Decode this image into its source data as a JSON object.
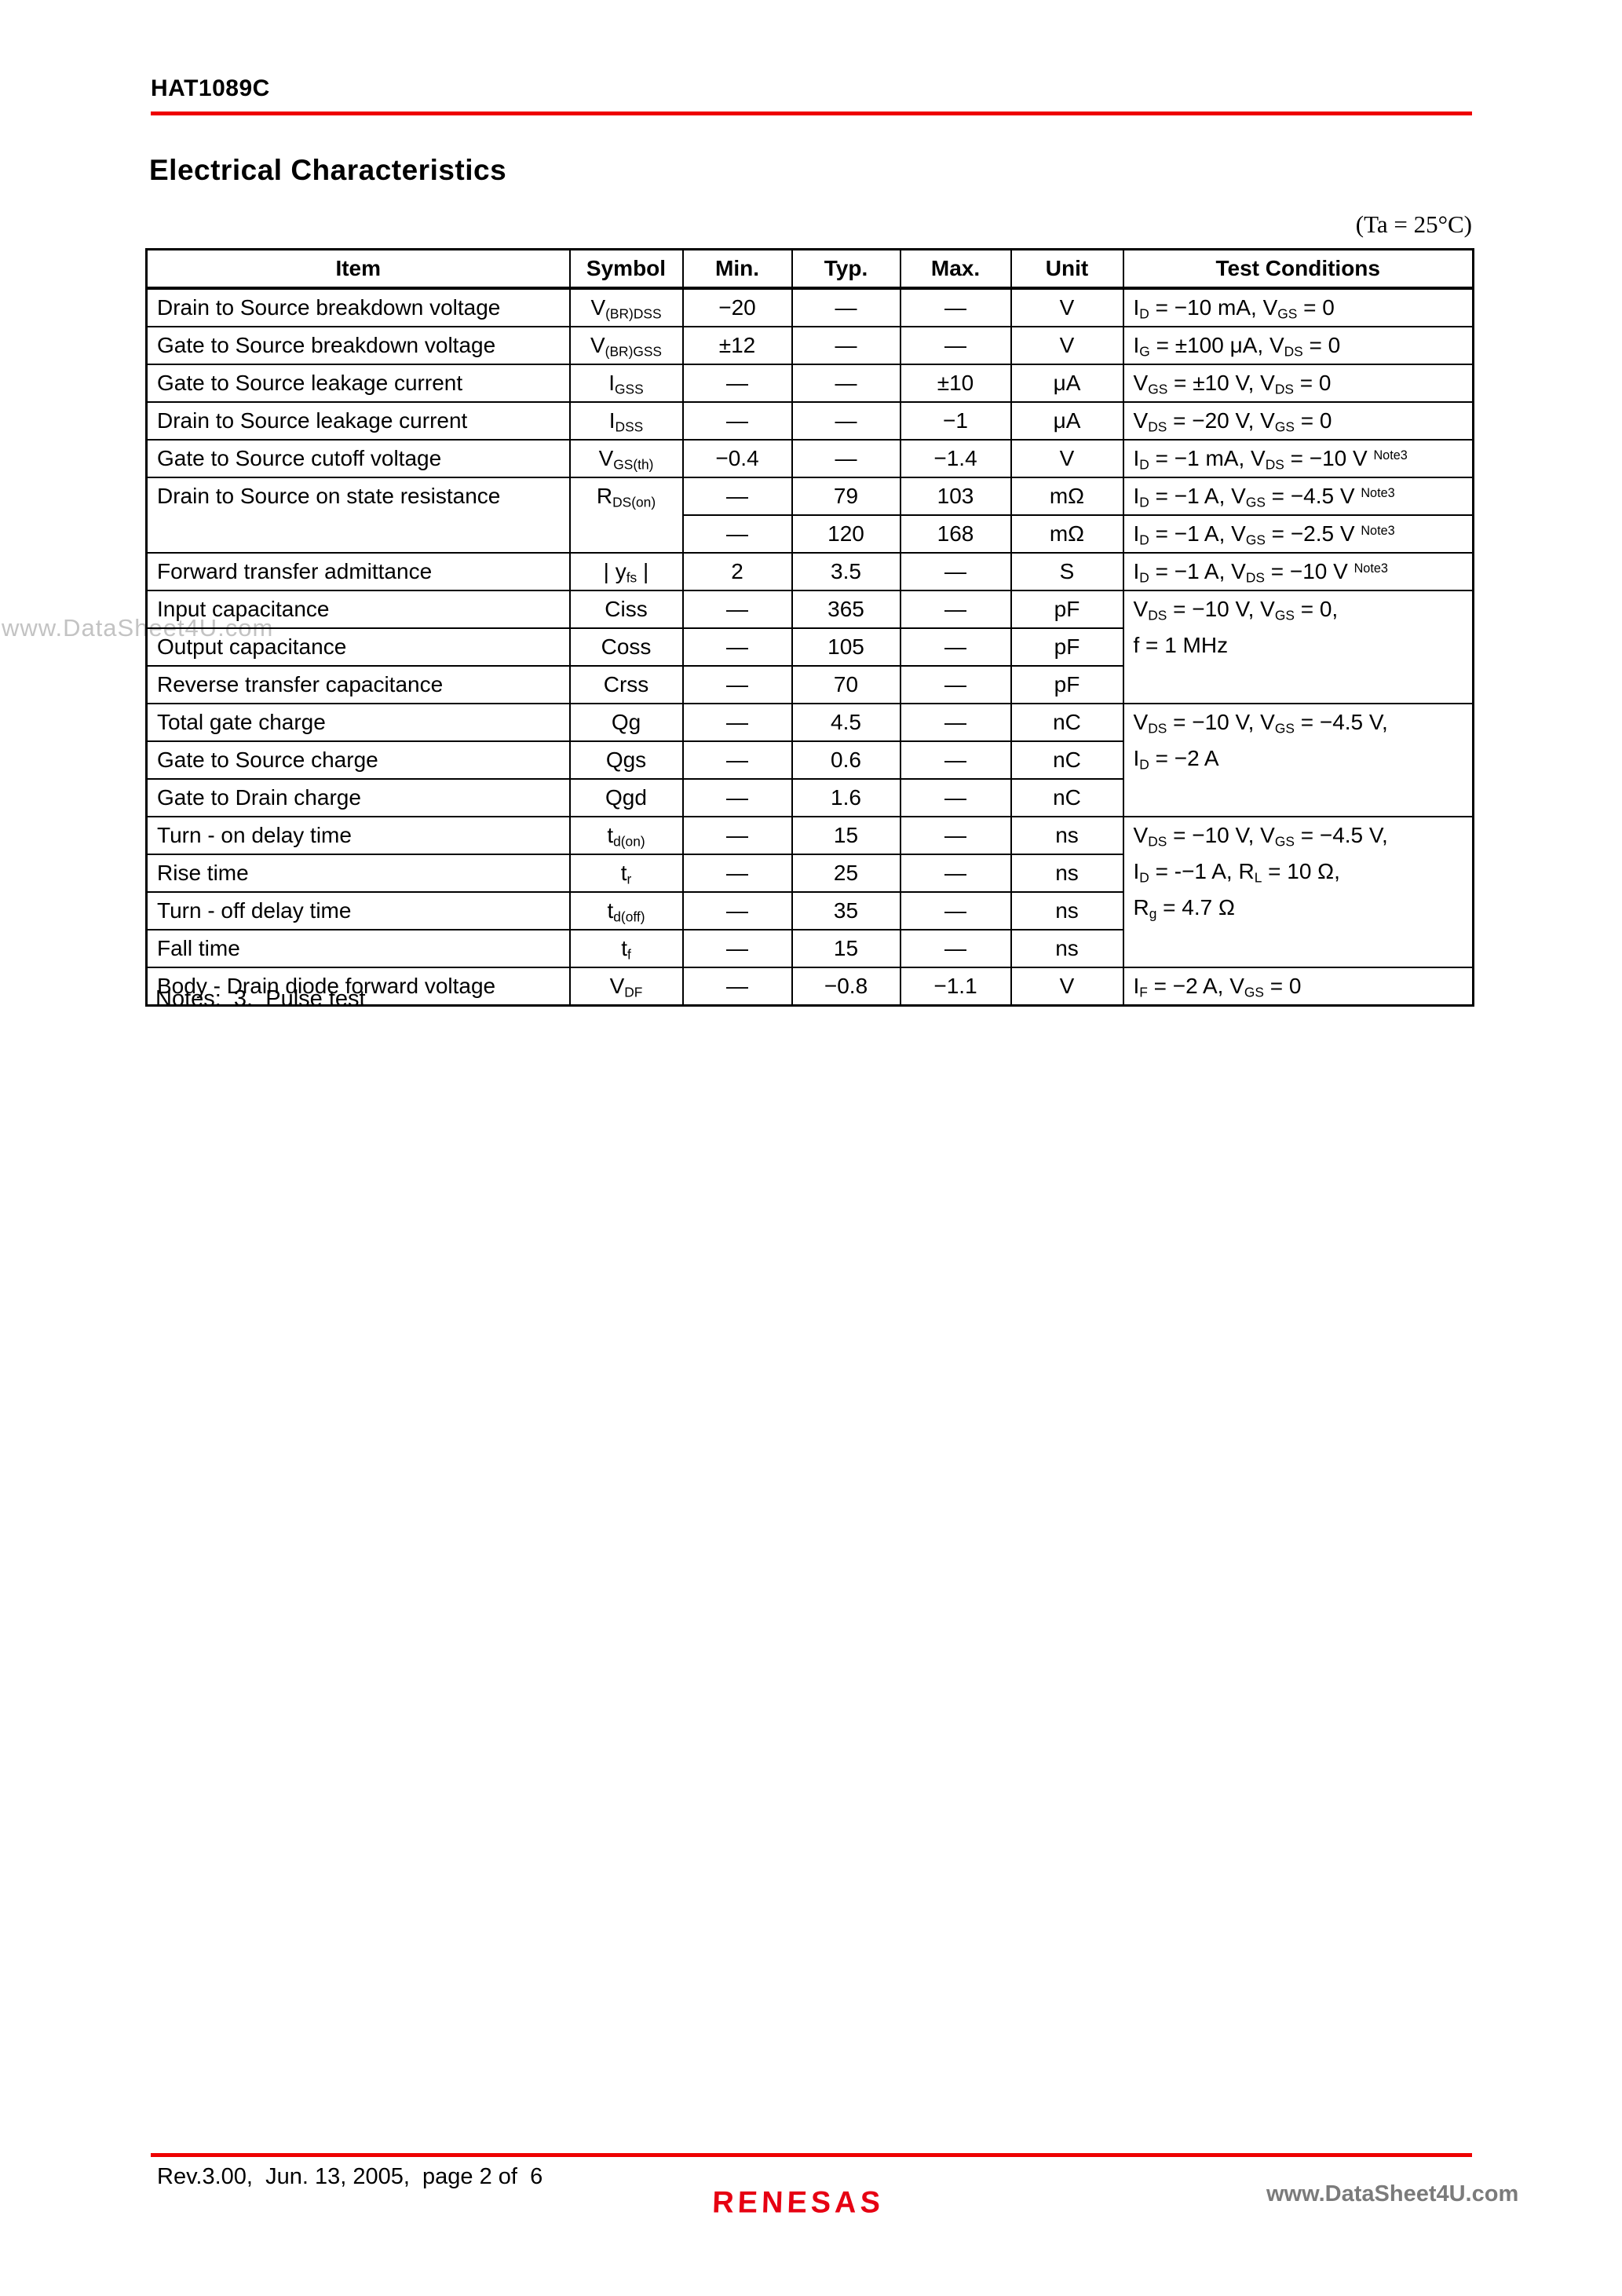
{
  "page": {
    "doc_id": "HAT1089C",
    "section_title": "Electrical Characteristics",
    "temp_note": "(Ta = 25°C)",
    "notes_line": "Notes:  3.  Pulse test",
    "watermark": "www.DataSheet4U.com",
    "colors": {
      "rule_red": "#ee0000",
      "logo_red": "#e60012",
      "watermark_gray": "#c3c3c3",
      "url_gray": "#7b7b7b"
    }
  },
  "footer": {
    "revision": "Rev.3.00,  Jun. 13, 2005,  page 2 of  6",
    "logo_text": "RENESAS",
    "url": "www.DataSheet4U.com"
  },
  "table": {
    "headers": [
      "Item",
      "Symbol",
      "Min.",
      "Typ.",
      "Max.",
      "Unit",
      "Test Conditions"
    ],
    "rows": [
      [
        {
          "t": "Drain to Source breakdown voltage",
          "c": "item"
        },
        {
          "t": "V_{(BR)DSS}"
        },
        {
          "t": "−20"
        },
        {
          "t": "—"
        },
        {
          "t": "—"
        },
        {
          "t": "V"
        },
        {
          "t": "I_{D} = −10 mA, V_{GS} = 0",
          "c": "cond"
        }
      ],
      [
        {
          "t": "Gate to Source breakdown voltage",
          "c": "item"
        },
        {
          "t": "V_{(BR)GSS}"
        },
        {
          "t": "±12"
        },
        {
          "t": "—"
        },
        {
          "t": "—"
        },
        {
          "t": "V"
        },
        {
          "t": "I_{G} = ±100 μA, V_{DS} = 0",
          "c": "cond"
        }
      ],
      [
        {
          "t": "Gate to Source leakage current",
          "c": "item"
        },
        {
          "t": "I_{GSS}"
        },
        {
          "t": "—"
        },
        {
          "t": "—"
        },
        {
          "t": "±10"
        },
        {
          "t": "μA"
        },
        {
          "t": "V_{GS} = ±10 V, V_{DS} = 0",
          "c": "cond"
        }
      ],
      [
        {
          "t": "Drain to Source leakage current",
          "c": "item"
        },
        {
          "t": "I_{DSS}"
        },
        {
          "t": "—"
        },
        {
          "t": "—"
        },
        {
          "t": "−1"
        },
        {
          "t": "μA"
        },
        {
          "t": "V_{DS} = −20 V, V_{GS} = 0",
          "c": "cond"
        }
      ],
      [
        {
          "t": "Gate to Source cutoff voltage",
          "c": "item"
        },
        {
          "t": "V_{GS(th)}"
        },
        {
          "t": "−0.4"
        },
        {
          "t": "—"
        },
        {
          "t": "−1.4"
        },
        {
          "t": "V"
        },
        {
          "t": "I_{D} = −1 mA, V_{DS} = −10 V ^{Note3}",
          "c": "cond"
        }
      ],
      [
        {
          "t": "Drain to Source on state resistance",
          "c": "item top",
          "rs": 2
        },
        {
          "t": "R_{DS(on)}",
          "c": "top",
          "rs": 2
        },
        {
          "t": "—"
        },
        {
          "t": "79"
        },
        {
          "t": "103"
        },
        {
          "t": "mΩ"
        },
        {
          "t": "I_{D} = −1 A, V_{GS} = −4.5 V ^{Note3}",
          "c": "cond"
        }
      ],
      [
        {
          "t": "—"
        },
        {
          "t": "120"
        },
        {
          "t": "168"
        },
        {
          "t": "mΩ"
        },
        {
          "t": "I_{D} = −1 A, V_{GS} = −2.5 V ^{Note3}",
          "c": "cond"
        }
      ],
      [
        {
          "t": "Forward transfer admittance",
          "c": "item"
        },
        {
          "t": "| y_{fs} |"
        },
        {
          "t": "2"
        },
        {
          "t": "3.5"
        },
        {
          "t": "—"
        },
        {
          "t": "S"
        },
        {
          "t": "I_{D} = −1 A, V_{DS} = −10 V ^{Note3}",
          "c": "cond"
        }
      ],
      [
        {
          "t": "Input capacitance",
          "c": "item"
        },
        {
          "t": "Ciss"
        },
        {
          "t": "—"
        },
        {
          "t": "365"
        },
        {
          "t": "—"
        },
        {
          "t": "pF"
        },
        {
          "t": "V_{DS} = −10 V, V_{GS} = 0,\nf = 1 MHz",
          "c": "cond top",
          "rs": 3
        }
      ],
      [
        {
          "t": "Output capacitance",
          "c": "item"
        },
        {
          "t": "Coss"
        },
        {
          "t": "—"
        },
        {
          "t": "105"
        },
        {
          "t": "—"
        },
        {
          "t": "pF"
        }
      ],
      [
        {
          "t": "Reverse transfer capacitance",
          "c": "item"
        },
        {
          "t": "Crss"
        },
        {
          "t": "—"
        },
        {
          "t": "70"
        },
        {
          "t": "—"
        },
        {
          "t": "pF"
        }
      ],
      [
        {
          "t": "Total gate charge",
          "c": "item"
        },
        {
          "t": "Qg"
        },
        {
          "t": "—"
        },
        {
          "t": "4.5"
        },
        {
          "t": "—"
        },
        {
          "t": "nC"
        },
        {
          "t": "V_{DS} = −10 V, V_{GS} = −4.5 V,\nI_{D} = −2 A",
          "c": "cond top",
          "rs": 3
        }
      ],
      [
        {
          "t": "Gate to Source charge",
          "c": "item"
        },
        {
          "t": "Qgs"
        },
        {
          "t": "—"
        },
        {
          "t": "0.6"
        },
        {
          "t": "—"
        },
        {
          "t": "nC"
        }
      ],
      [
        {
          "t": "Gate to Drain charge",
          "c": "item"
        },
        {
          "t": "Qgd"
        },
        {
          "t": "—"
        },
        {
          "t": "1.6"
        },
        {
          "t": "—"
        },
        {
          "t": "nC"
        }
      ],
      [
        {
          "t": "Turn - on delay time",
          "c": "item"
        },
        {
          "t": "t_{d(on)}"
        },
        {
          "t": "—"
        },
        {
          "t": "15"
        },
        {
          "t": "—"
        },
        {
          "t": "ns"
        },
        {
          "t": "V_{DS} = −10 V, V_{GS} = −4.5 V,\nI_{D} = -−1 A, R_{L} = 10 Ω,\nR_{g} = 4.7 Ω",
          "c": "cond top",
          "rs": 4
        }
      ],
      [
        {
          "t": "Rise time",
          "c": "item"
        },
        {
          "t": "t_{r}"
        },
        {
          "t": "—"
        },
        {
          "t": "25"
        },
        {
          "t": "—"
        },
        {
          "t": "ns"
        }
      ],
      [
        {
          "t": "Turn - off delay time",
          "c": "item"
        },
        {
          "t": "t_{d(off)}"
        },
        {
          "t": "—"
        },
        {
          "t": "35"
        },
        {
          "t": "—"
        },
        {
          "t": "ns"
        }
      ],
      [
        {
          "t": "Fall time",
          "c": "item"
        },
        {
          "t": "t_{f}"
        },
        {
          "t": "—"
        },
        {
          "t": "15"
        },
        {
          "t": "—"
        },
        {
          "t": "ns"
        }
      ],
      [
        {
          "t": "Body - Drain diode forward voltage",
          "c": "item"
        },
        {
          "t": "V_{DF}"
        },
        {
          "t": "—"
        },
        {
          "t": "−0.8"
        },
        {
          "t": "−1.1"
        },
        {
          "t": "V"
        },
        {
          "t": "I_{F} = −2 A, V_{GS} = 0",
          "c": "cond"
        }
      ]
    ]
  }
}
